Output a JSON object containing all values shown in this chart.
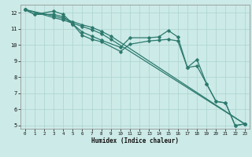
{
  "title": "",
  "xlabel": "Humidex (Indice chaleur)",
  "bg_color": "#cceae7",
  "line_color": "#2d7a6e",
  "grid_color": "#aad4d0",
  "xlim": [
    -0.5,
    23.5
  ],
  "ylim": [
    4.8,
    12.5
  ],
  "yticks": [
    5,
    6,
    7,
    8,
    9,
    10,
    11,
    12
  ],
  "xticks": [
    0,
    1,
    2,
    3,
    4,
    5,
    6,
    7,
    8,
    9,
    10,
    11,
    12,
    13,
    14,
    15,
    16,
    17,
    18,
    19,
    20,
    21,
    22,
    23
  ],
  "lines": [
    {
      "x": [
        0,
        1,
        3,
        4,
        5,
        6,
        7,
        8,
        10,
        11,
        13,
        14,
        15,
        16,
        17,
        18,
        19,
        20,
        21,
        22,
        23
      ],
      "y": [
        12.2,
        11.9,
        12.1,
        11.9,
        11.3,
        10.8,
        10.55,
        10.3,
        9.85,
        10.45,
        10.45,
        10.5,
        10.9,
        10.5,
        8.6,
        9.1,
        7.6,
        6.5,
        6.4,
        5.0,
        5.1
      ]
    },
    {
      "x": [
        0,
        1,
        3,
        4,
        5,
        6,
        7,
        8,
        10,
        11,
        13,
        14,
        15,
        16,
        17,
        18,
        19,
        20,
        21,
        22,
        23
      ],
      "y": [
        12.2,
        11.9,
        11.9,
        11.75,
        11.3,
        10.6,
        10.35,
        10.2,
        9.6,
        10.05,
        10.25,
        10.3,
        10.35,
        10.25,
        8.6,
        8.7,
        7.6,
        6.5,
        6.4,
        5.0,
        5.1
      ]
    },
    {
      "x": [
        0,
        3,
        4,
        5,
        6,
        7,
        8,
        9,
        23
      ],
      "y": [
        12.2,
        11.8,
        11.65,
        11.45,
        11.25,
        11.1,
        10.85,
        10.55,
        5.1
      ]
    },
    {
      "x": [
        0,
        3,
        4,
        5,
        6,
        7,
        8,
        9,
        23
      ],
      "y": [
        12.2,
        11.7,
        11.55,
        11.35,
        11.15,
        10.95,
        10.7,
        10.35,
        5.1
      ]
    }
  ]
}
